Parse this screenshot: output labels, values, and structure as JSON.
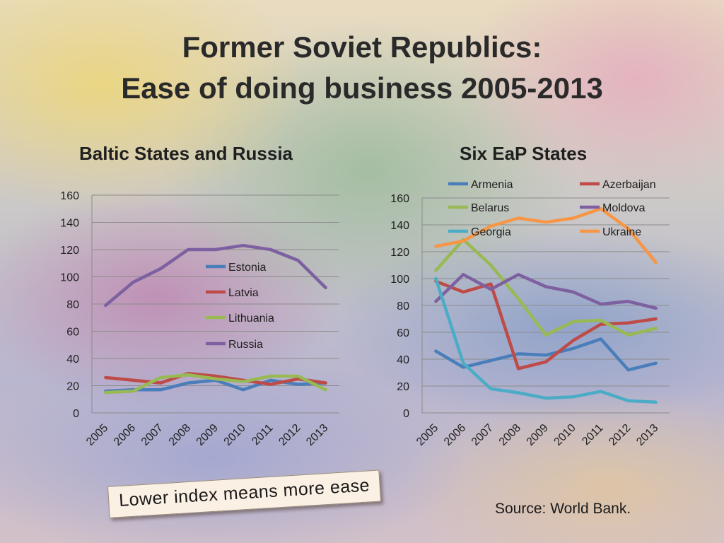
{
  "page": {
    "title_line1": "Former Soviet Republics:",
    "title_line2": "Ease of doing business 2005-2013",
    "note": "Lower index means more ease",
    "source": "Source: World Bank."
  },
  "chart_data": [
    {
      "type": "line",
      "title": "Baltic States and Russia",
      "xlabel": "",
      "ylabel": "",
      "categories": [
        "2005",
        "2006",
        "2007",
        "2008",
        "2009",
        "2010",
        "2011",
        "2012",
        "2013"
      ],
      "ylim": [
        0,
        160
      ],
      "yticks": [
        0,
        20,
        40,
        60,
        80,
        100,
        120,
        140,
        160
      ],
      "grid": true,
      "legend": "center",
      "series": [
        {
          "name": "Estonia",
          "color": "#4a7ebb",
          "values": [
            16,
            17,
            17,
            22,
            24,
            17,
            24,
            21,
            22
          ]
        },
        {
          "name": "Latvia",
          "color": "#be4b48",
          "values": [
            26,
            24,
            22,
            29,
            27,
            24,
            21,
            25,
            22
          ]
        },
        {
          "name": "Lithuania",
          "color": "#98b954",
          "values": [
            15,
            16,
            26,
            28,
            25,
            23,
            27,
            27,
            17
          ]
        },
        {
          "name": "Russia",
          "color": "#7d60a0",
          "values": [
            79,
            96,
            106,
            120,
            120,
            123,
            120,
            112,
            92
          ]
        }
      ]
    },
    {
      "type": "line",
      "title": "Six EaP States",
      "xlabel": "",
      "ylabel": "",
      "categories": [
        "2005",
        "2006",
        "2007",
        "2008",
        "2009",
        "2010",
        "2011",
        "2012",
        "2013"
      ],
      "ylim": [
        0,
        160
      ],
      "yticks": [
        0,
        20,
        40,
        60,
        80,
        100,
        120,
        140,
        160
      ],
      "grid": true,
      "legend": "top",
      "series": [
        {
          "name": "Armenia",
          "color": "#4a7ebb",
          "values": [
            46,
            34,
            39,
            44,
            43,
            48,
            55,
            32,
            37
          ]
        },
        {
          "name": "Azerbaijan",
          "color": "#be4b48",
          "values": [
            98,
            90,
            96,
            33,
            38,
            54,
            66,
            67,
            70
          ]
        },
        {
          "name": "Belarus",
          "color": "#98b954",
          "values": [
            106,
            129,
            110,
            85,
            58,
            68,
            69,
            58,
            63
          ]
        },
        {
          "name": "Moldova",
          "color": "#7d60a0",
          "values": [
            83,
            103,
            92,
            103,
            94,
            90,
            81,
            83,
            78
          ]
        },
        {
          "name": "Georgia",
          "color": "#4bacc6",
          "values": [
            100,
            37,
            18,
            15,
            11,
            12,
            16,
            9,
            8
          ]
        },
        {
          "name": "Ukraine",
          "color": "#f79646",
          "values": [
            124,
            128,
            139,
            145,
            142,
            145,
            152,
            137,
            112
          ]
        }
      ]
    }
  ]
}
